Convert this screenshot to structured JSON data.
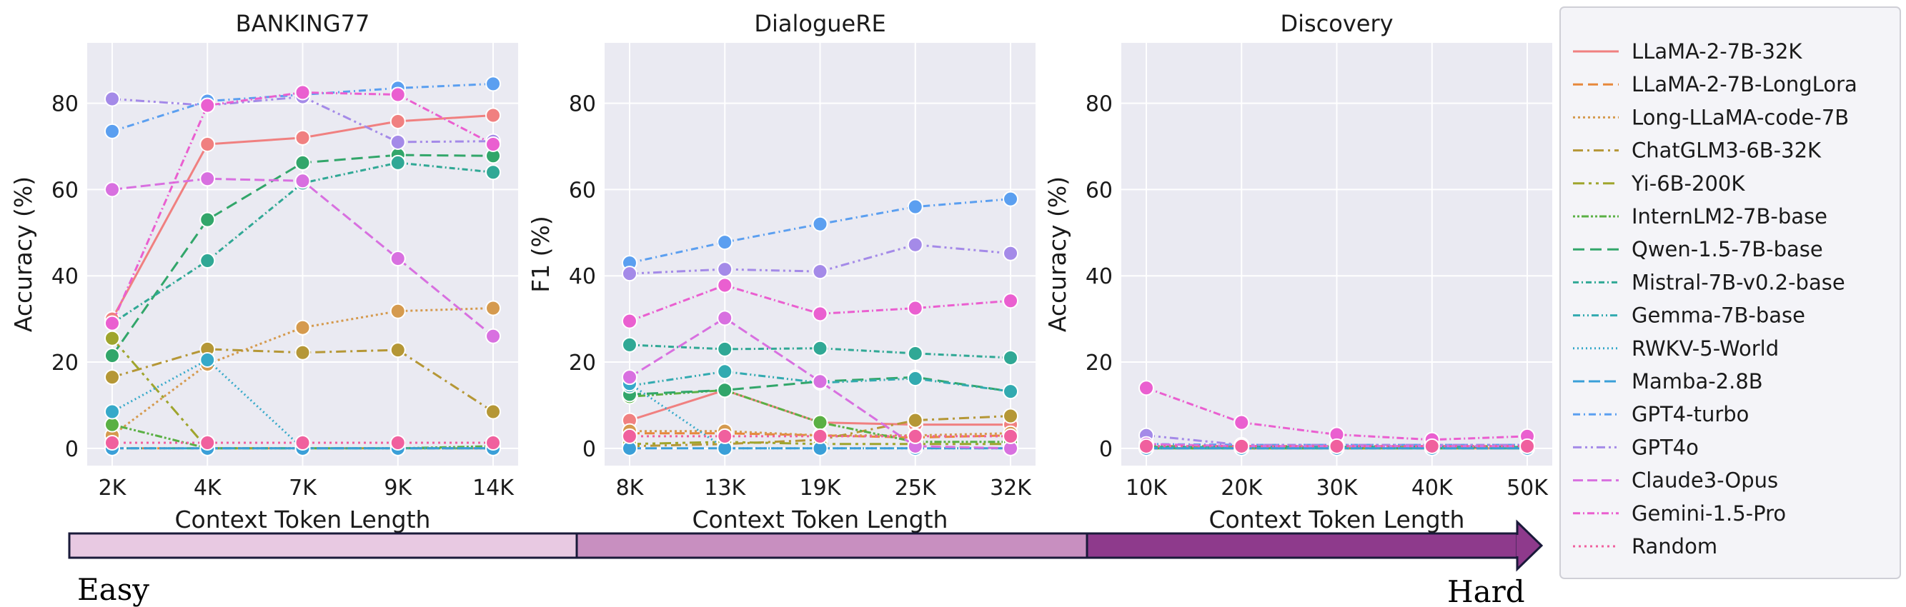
{
  "chart_data": {
    "type": "line",
    "series_styles": [
      {
        "name": "LLaMA-2-7B-32K",
        "color": "#f08080",
        "dash": ""
      },
      {
        "name": "LLaMA-2-7B-LongLora",
        "color": "#e7883c",
        "dash": "14,7"
      },
      {
        "name": "Long-LLaMA-code-7B",
        "color": "#d59a4e",
        "dash": "3,4"
      },
      {
        "name": "ChatGLM3-6B-32K",
        "color": "#b59736",
        "dash": "14,6,3,6"
      },
      {
        "name": "Yi-6B-200K",
        "color": "#9fa52d",
        "dash": "16,6,4,6,4,6"
      },
      {
        "name": "InternLM2-7B-base",
        "color": "#5ab044",
        "dash": "3,3,3,3,10,3"
      },
      {
        "name": "Qwen-1.5-7B-base",
        "color": "#32a66a",
        "dash": "16,8"
      },
      {
        "name": "Mistral-7B-v0.2-base",
        "color": "#30a895",
        "dash": "8,4,2,4"
      },
      {
        "name": "Gemma-7B-base",
        "color": "#32aab0",
        "dash": "10,4,2,4,2,4"
      },
      {
        "name": "RWKV-5-World",
        "color": "#36a9c9",
        "dash": "2,4"
      },
      {
        "name": "Mamba-2.8B",
        "color": "#3a9fd8",
        "dash": "16,6"
      },
      {
        "name": "GPT4-turbo",
        "color": "#5b9ff0",
        "dash": "10,5,2,5"
      },
      {
        "name": "GPT4o",
        "color": "#a48ae8",
        "dash": "12,5,3,5,3,5"
      },
      {
        "name": "Claude3-Opus",
        "color": "#d870e0",
        "dash": "14,6"
      },
      {
        "name": "Gemini-1.5-Pro",
        "color": "#ea5fd0",
        "dash": "10,4,2,4"
      },
      {
        "name": "Random",
        "color": "#f0609e",
        "dash": "3,5"
      }
    ],
    "panels": [
      {
        "title": "BANKING77",
        "xlabel": "Context Token Length",
        "ylabel": "Accuracy (%)",
        "categories": [
          "2K",
          "4K",
          "7K",
          "9K",
          "14K"
        ],
        "ylim": [
          -4,
          94
        ],
        "yticks": [
          0,
          20,
          40,
          60,
          80
        ],
        "series": [
          {
            "name": "LLaMA-2-7B-32K",
            "values": [
              30,
              70.5,
              72,
              75.8,
              77.2
            ]
          },
          {
            "name": "LLaMA-2-7B-LongLora",
            "values": [
              0,
              0,
              0,
              0,
              0
            ]
          },
          {
            "name": "Long-LLaMA-code-7B",
            "values": [
              3,
              19.5,
              28,
              31.8,
              32.5
            ]
          },
          {
            "name": "ChatGLM3-6B-32K",
            "values": [
              16.5,
              23,
              22.2,
              22.8,
              8.5
            ]
          },
          {
            "name": "Yi-6B-200K",
            "values": [
              25.5,
              0,
              0,
              0,
              0
            ]
          },
          {
            "name": "InternLM2-7B-base",
            "values": [
              5.5,
              0,
              0,
              0,
              0.5
            ]
          },
          {
            "name": "Qwen-1.5-7B-base",
            "values": [
              21.5,
              53,
              66.2,
              68,
              67.8
            ]
          },
          {
            "name": "Mistral-7B-v0.2-base",
            "values": [
              29,
              43.5,
              61.5,
              66.2,
              64
            ]
          },
          {
            "name": "Gemma-7B-base",
            "values": [
              0,
              0,
              0,
              0,
              0
            ]
          },
          {
            "name": "RWKV-5-World",
            "values": [
              8.5,
              20.5,
              0,
              0,
              0
            ]
          },
          {
            "name": "Mamba-2.8B",
            "values": [
              0,
              0,
              0,
              0,
              0
            ]
          },
          {
            "name": "GPT4-turbo",
            "values": [
              73.5,
              80.5,
              82,
              83.5,
              84.5
            ]
          },
          {
            "name": "GPT4o",
            "values": [
              81,
              79.5,
              81.5,
              71,
              71.2
            ]
          },
          {
            "name": "Claude3-Opus",
            "values": [
              60,
              62.5,
              62,
              44,
              26
            ]
          },
          {
            "name": "Gemini-1.5-Pro",
            "values": [
              29,
              79.5,
              82.5,
              82,
              70.5
            ]
          },
          {
            "name": "Random",
            "values": [
              1.3,
              1.3,
              1.3,
              1.3,
              1.3
            ]
          }
        ]
      },
      {
        "title": "DialogueRE",
        "xlabel": "Context Token Length",
        "ylabel": "F1 (%)",
        "categories": [
          "8K",
          "13K",
          "19K",
          "25K",
          "32K"
        ],
        "ylim": [
          -4,
          94
        ],
        "yticks": [
          0,
          20,
          40,
          60,
          80
        ],
        "series": [
          {
            "name": "LLaMA-2-7B-32K",
            "values": [
              6.5,
              13.5,
              6,
              5.5,
              5.5
            ]
          },
          {
            "name": "LLaMA-2-7B-LongLora",
            "values": [
              3.5,
              3.5,
              3,
              2.5,
              3
            ]
          },
          {
            "name": "Long-LLaMA-code-7B",
            "values": [
              4,
              4,
              3,
              3,
              3.5
            ]
          },
          {
            "name": "ChatGLM3-6B-32K",
            "values": [
              0.5,
              1,
              2,
              6.5,
              7.5
            ]
          },
          {
            "name": "Yi-6B-200K",
            "values": [
              1,
              1.5,
              1,
              1,
              1
            ]
          },
          {
            "name": "InternLM2-7B-base",
            "values": [
              12,
              13.5,
              6,
              1.5,
              1.5
            ]
          },
          {
            "name": "Qwen-1.5-7B-base",
            "values": [
              12.5,
              13.5,
              15.5,
              16.5,
              13.2
            ]
          },
          {
            "name": "Mistral-7B-v0.2-base",
            "values": [
              24,
              23,
              23.2,
              22,
              21
            ]
          },
          {
            "name": "Gemma-7B-base",
            "values": [
              14.5,
              17.8,
              15.2,
              16.2,
              13.2
            ]
          },
          {
            "name": "RWKV-5-World",
            "values": [
              15,
              0,
              0,
              0,
              0
            ]
          },
          {
            "name": "Mamba-2.8B",
            "values": [
              0,
              0,
              0,
              0,
              0
            ]
          },
          {
            "name": "GPT4-turbo",
            "values": [
              43,
              47.8,
              52,
              56,
              57.8
            ]
          },
          {
            "name": "GPT4o",
            "values": [
              40.5,
              41.5,
              41,
              47.2,
              45.2
            ]
          },
          {
            "name": "Claude3-Opus",
            "values": [
              16.5,
              30.2,
              15.5,
              0.5,
              0
            ]
          },
          {
            "name": "Gemini-1.5-Pro",
            "values": [
              29.5,
              37.8,
              31.2,
              32.5,
              34.2
            ]
          },
          {
            "name": "Random",
            "values": [
              2.8,
              2.8,
              2.8,
              2.8,
              2.8
            ]
          }
        ]
      },
      {
        "title": "Discovery",
        "xlabel": "Context Token Length",
        "ylabel": "Accuracy (%)",
        "categories": [
          "10K",
          "20K",
          "30K",
          "40K",
          "50K"
        ],
        "ylim": [
          -4,
          94
        ],
        "yticks": [
          0,
          20,
          40,
          60,
          80
        ],
        "series": [
          {
            "name": "LLaMA-2-7B-32K",
            "values": [
              0,
              0,
              0,
              0,
              0
            ]
          },
          {
            "name": "LLaMA-2-7B-LongLora",
            "values": [
              0,
              0,
              0,
              0,
              0
            ]
          },
          {
            "name": "Long-LLaMA-code-7B",
            "values": [
              0,
              0,
              0,
              0,
              0
            ]
          },
          {
            "name": "ChatGLM3-6B-32K",
            "values": [
              0.5,
              0.5,
              0.5,
              0.5,
              0.5
            ]
          },
          {
            "name": "Yi-6B-200K",
            "values": [
              0,
              0,
              0,
              0,
              0
            ]
          },
          {
            "name": "InternLM2-7B-base",
            "values": [
              0,
              0,
              0,
              0,
              0
            ]
          },
          {
            "name": "Qwen-1.5-7B-base",
            "values": [
              0.3,
              0.3,
              0.3,
              0.3,
              0.3
            ]
          },
          {
            "name": "Mistral-7B-v0.2-base",
            "values": [
              0.3,
              0.3,
              0.3,
              0.3,
              0.3
            ]
          },
          {
            "name": "Gemma-7B-base",
            "values": [
              0,
              0,
              0,
              0,
              0
            ]
          },
          {
            "name": "RWKV-5-World",
            "values": [
              0,
              0,
              0,
              0,
              0
            ]
          },
          {
            "name": "Mamba-2.8B",
            "values": [
              0,
              0,
              0,
              0,
              0
            ]
          },
          {
            "name": "GPT4-turbo",
            "values": [
              1,
              0.8,
              0.8,
              0.8,
              0.8
            ]
          },
          {
            "name": "GPT4o",
            "values": [
              3,
              0.8,
              0.8,
              0.8,
              0.8
            ]
          },
          {
            "name": "Claude3-Opus",
            "values": [
              1,
              0.5,
              0.5,
              0.5,
              0.5
            ]
          },
          {
            "name": "Gemini-1.5-Pro",
            "values": [
              14,
              6,
              3.2,
              2,
              2.8
            ]
          },
          {
            "name": "Random",
            "values": [
              0.5,
              0.5,
              0.5,
              0.5,
              0.5
            ]
          }
        ]
      }
    ],
    "legend_position": "right",
    "difficulty_arrow": {
      "left_label": "Easy",
      "right_label": "Hard",
      "colors": [
        "#e8c9e2",
        "#c88fc0",
        "#8e3a8c"
      ]
    }
  }
}
